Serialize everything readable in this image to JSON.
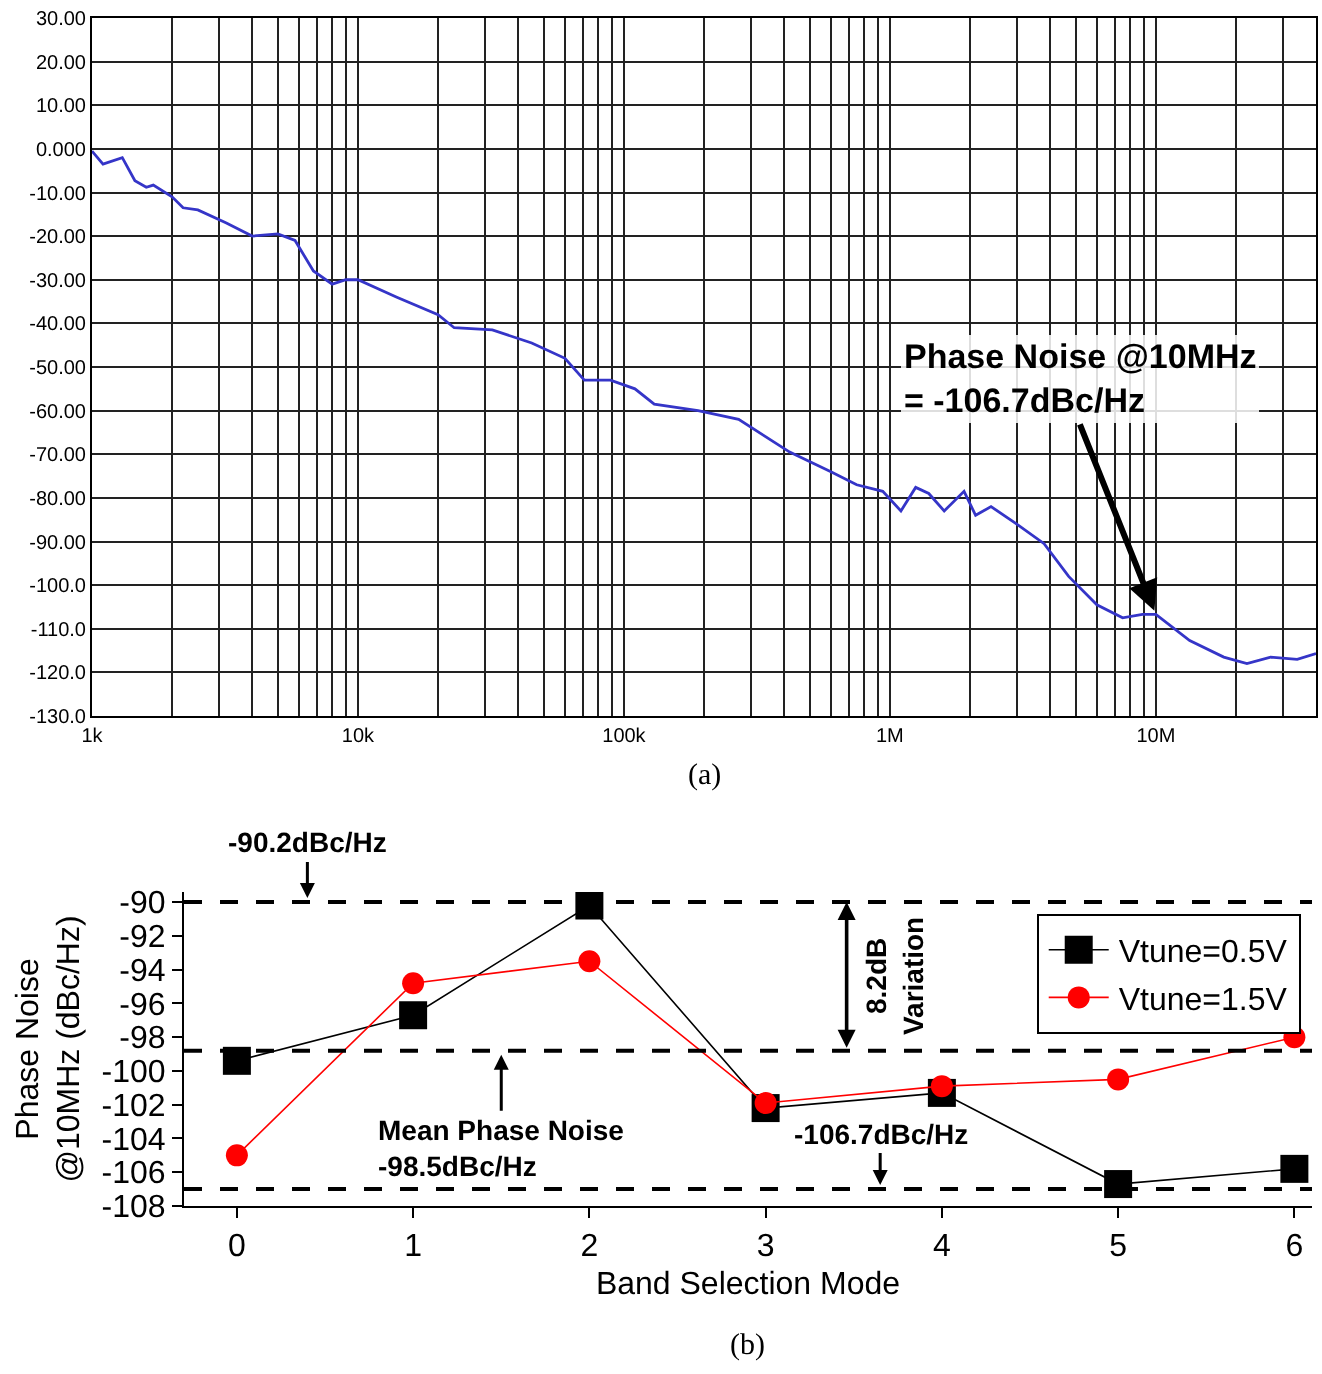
{
  "chart_data": [
    {
      "type": "line",
      "log": "x",
      "grid": true,
      "marker": "none",
      "line_style": "solid",
      "x": [
        1000,
        1100,
        1300,
        1450,
        1600,
        1700,
        2000,
        2200,
        2500,
        3200,
        4000,
        5000,
        5800,
        6800,
        8000,
        9000,
        10000,
        14000,
        20000,
        23000,
        32000,
        45000,
        60000,
        71000,
        89000,
        110000,
        130000,
        190000,
        270000,
        420000,
        600000,
        750000,
        940000,
        1100000,
        1250000,
        1400000,
        1600000,
        1900000,
        2100000,
        2400000,
        3000000,
        3800000,
        4700000,
        6000000,
        7500000,
        8900000,
        10000000,
        13400000,
        18000000,
        22000000,
        27000000,
        34000000,
        40000000
      ],
      "series": [
        {
          "color": "#3535c8",
          "values": [
            -0.5,
            -3.5,
            -2,
            -7.3,
            -8.8,
            -8.3,
            -11,
            -13.5,
            -14,
            -17,
            -20,
            -19.5,
            -21,
            -28,
            -31,
            -30,
            -30,
            -34,
            -38,
            -41,
            -41.5,
            -44.5,
            -48,
            -53,
            -53,
            -55,
            -58.5,
            -60,
            -62,
            -69.5,
            -74,
            -77,
            -78.5,
            -83,
            -77.6,
            -79,
            -83,
            -78.5,
            -84,
            -82,
            -86,
            -90.5,
            -98,
            -104.5,
            -107.5,
            -106.7,
            -106.7,
            -112.7,
            -116.5,
            -118,
            -116.5,
            -117,
            -115.7
          ]
        }
      ],
      "xlim": [
        1000,
        40000000
      ],
      "xticks": [
        {
          "value": 1000,
          "label": "1k"
        },
        {
          "value": 2000,
          "label": null
        },
        {
          "value": 3000,
          "label": null
        },
        {
          "value": 4000,
          "label": null
        },
        {
          "value": 5000,
          "label": null
        },
        {
          "value": 6000,
          "label": null
        },
        {
          "value": 7000,
          "label": null
        },
        {
          "value": 8000,
          "label": null
        },
        {
          "value": 9000,
          "label": null
        },
        {
          "value": 10000,
          "label": "10k"
        },
        {
          "value": 20000,
          "label": null
        },
        {
          "value": 30000,
          "label": null
        },
        {
          "value": 40000,
          "label": null
        },
        {
          "value": 50000,
          "label": null
        },
        {
          "value": 60000,
          "label": null
        },
        {
          "value": 70000,
          "label": null
        },
        {
          "value": 80000,
          "label": null
        },
        {
          "value": 90000,
          "label": null
        },
        {
          "value": 100000,
          "label": "100k"
        },
        {
          "value": 200000,
          "label": null
        },
        {
          "value": 300000,
          "label": null
        },
        {
          "value": 400000,
          "label": null
        },
        {
          "value": 500000,
          "label": null
        },
        {
          "value": 600000,
          "label": null
        },
        {
          "value": 700000,
          "label": null
        },
        {
          "value": 800000,
          "label": null
        },
        {
          "value": 900000,
          "label": null
        },
        {
          "value": 1000000,
          "label": "1M"
        },
        {
          "value": 2000000,
          "label": null
        },
        {
          "value": 3000000,
          "label": null
        },
        {
          "value": 4000000,
          "label": null
        },
        {
          "value": 5000000,
          "label": null
        },
        {
          "value": 6000000,
          "label": null
        },
        {
          "value": 7000000,
          "label": null
        },
        {
          "value": 8000000,
          "label": null
        },
        {
          "value": 9000000,
          "label": null
        },
        {
          "value": 10000000,
          "label": "10M"
        },
        {
          "value": 20000000,
          "label": null
        },
        {
          "value": 30000000,
          "label": null
        }
      ],
      "ylim": [
        -130,
        30
      ],
      "yticks": [
        {
          "value": 30,
          "label": "30.00"
        },
        {
          "value": 20,
          "label": "20.00"
        },
        {
          "value": 10,
          "label": "10.00"
        },
        {
          "value": 0,
          "label": "0.000"
        },
        {
          "value": -10,
          "label": "-10.00"
        },
        {
          "value": -20,
          "label": "-20.00"
        },
        {
          "value": -30,
          "label": "-30.00"
        },
        {
          "value": -40,
          "label": "-40.00"
        },
        {
          "value": -50,
          "label": "-50.00"
        },
        {
          "value": -60,
          "label": "-60.00"
        },
        {
          "value": -70,
          "label": "-70.00"
        },
        {
          "value": -80,
          "label": "-80.00"
        },
        {
          "value": -90,
          "label": "-90.00"
        },
        {
          "value": -100,
          "label": "-100.0"
        },
        {
          "value": -110,
          "label": "-110.0"
        },
        {
          "value": -120,
          "label": "-120.0"
        },
        {
          "value": -130,
          "label": "-130.0"
        }
      ],
      "annotations": [
        {
          "text": "Phase Noise @10MHz\n= -106.7dBc/Hz",
          "x": 10000000,
          "y": -106.7
        },
        "(a)"
      ]
    },
    {
      "type": "line",
      "xlabel": "Band Selection Mode",
      "ylabel": "Phase Noise\n@10MHz (dBc/Hz)",
      "legend": "top right",
      "grid": false,
      "x": [
        0,
        1,
        2,
        3,
        4,
        5,
        6
      ],
      "series": [
        {
          "name": "Vtune=0.5V",
          "color": "#000000",
          "marker": "square",
          "values": [
            -99.4,
            -96.7,
            -90.2,
            -102.2,
            -101.3,
            -106.7,
            -105.8
          ]
        },
        {
          "name": "Vtune=1.5V",
          "color": "#ff0000",
          "marker": "circle",
          "values": [
            -105,
            -94.8,
            -93.5,
            -101.9,
            -100.9,
            -100.5,
            -98
          ]
        }
      ],
      "xlim": [
        -0.3,
        6.1
      ],
      "xticks": [
        0,
        1,
        2,
        3,
        4,
        5,
        6
      ],
      "ylim": [
        -108,
        -89.4
      ],
      "yticks": [
        -108,
        -106,
        -104,
        -102,
        -100,
        -98,
        -96,
        -94,
        -92,
        -90
      ],
      "ref_lines": [
        {
          "axis": "y",
          "value": -90,
          "color": "#000000",
          "line_style": "dashed"
        },
        {
          "axis": "y",
          "value": -98.8,
          "color": "#000000",
          "line_style": "dashed"
        },
        {
          "axis": "y",
          "value": -107,
          "color": "#000000",
          "line_style": "dashed"
        }
      ],
      "annotations": [
        {
          "text": "-90.2dBc/Hz",
          "x": 0.4,
          "y": -90
        },
        {
          "text": "Mean Phase Noise\n-98.5dBc/Hz",
          "x": 1.5,
          "y": -98.8
        },
        {
          "text": "-106.7dBc/Hz",
          "x": 3.65,
          "y": -107
        },
        "8.2dB\nVariation",
        "(b)"
      ]
    }
  ]
}
